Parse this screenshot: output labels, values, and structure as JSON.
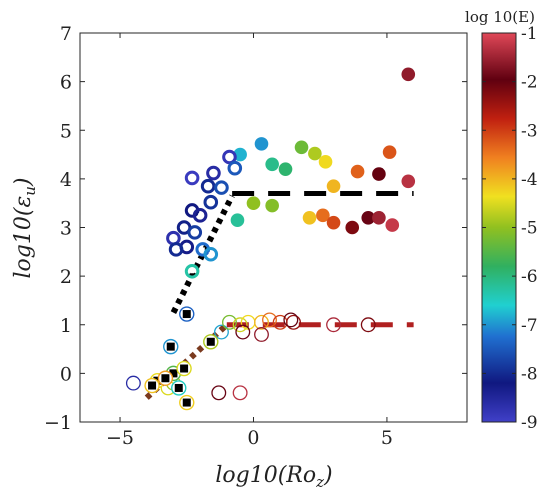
{
  "chart_data": {
    "type": "scatter",
    "title": "",
    "xlabel": "log10(Ro_z)",
    "ylabel": "log10(ε_u)",
    "xlim": [
      -6.5,
      8
    ],
    "ylim": [
      -1,
      7
    ],
    "xticks": [
      -5,
      0,
      5
    ],
    "yticks": [
      -1,
      0,
      1,
      2,
      3,
      4,
      5,
      6,
      7
    ],
    "xtick_labels": [
      "−5",
      "0",
      "5"
    ],
    "ytick_labels": [
      "−1",
      "0",
      "1",
      "2",
      "3",
      "4",
      "5",
      "6",
      "7"
    ],
    "grid": false,
    "colorbar": {
      "title": "log 10(E)",
      "range": [
        -9,
        -1
      ],
      "ticks": [
        -1,
        -2,
        -3,
        -4,
        -5,
        -6,
        -7,
        -8,
        -9
      ],
      "tick_labels": [
        "-1",
        "-2",
        "-3",
        "-4",
        "-5",
        "-6",
        "-7",
        "-8",
        "-9"
      ],
      "colors": [
        "#4040c8",
        "#101880",
        "#2070d0",
        "#20d0d0",
        "#30b060",
        "#90c020",
        "#f0e020",
        "#f08020",
        "#c02010",
        "#600010",
        "#e04858"
      ]
    },
    "series": [
      {
        "style": "filled",
        "points": [
          {
            "x": 5.8,
            "y": 6.15,
            "c": -1.6
          },
          {
            "x": -0.5,
            "y": 4.5,
            "c": -6.8
          },
          {
            "x": 0.3,
            "y": 4.72,
            "c": -7.0
          },
          {
            "x": 0.7,
            "y": 4.3,
            "c": -6.1
          },
          {
            "x": 1.2,
            "y": 4.2,
            "c": -5.9
          },
          {
            "x": -0.6,
            "y": 3.15,
            "c": -6.2
          },
          {
            "x": 0.0,
            "y": 3.5,
            "c": -5.0
          },
          {
            "x": 0.7,
            "y": 3.45,
            "c": -5.1
          },
          {
            "x": 1.8,
            "y": 4.65,
            "c": -5.3
          },
          {
            "x": 2.3,
            "y": 4.52,
            "c": -4.8
          },
          {
            "x": 2.7,
            "y": 4.35,
            "c": -4.3
          },
          {
            "x": 3.0,
            "y": 3.85,
            "c": -4.0
          },
          {
            "x": 2.1,
            "y": 3.2,
            "c": -4.1
          },
          {
            "x": 2.6,
            "y": 3.25,
            "c": -3.4
          },
          {
            "x": 3.0,
            "y": 3.1,
            "c": -3.1
          },
          {
            "x": 3.7,
            "y": 3.0,
            "c": -2.2
          },
          {
            "x": 4.3,
            "y": 3.2,
            "c": -1.9
          },
          {
            "x": 4.7,
            "y": 3.2,
            "c": -1.5
          },
          {
            "x": 5.2,
            "y": 3.05,
            "c": -1.2
          },
          {
            "x": 3.9,
            "y": 4.15,
            "c": -3.3
          },
          {
            "x": 4.7,
            "y": 4.1,
            "c": -2.0
          },
          {
            "x": 5.1,
            "y": 4.55,
            "c": -3.2
          },
          {
            "x": 5.8,
            "y": 3.95,
            "c": -1.3
          }
        ]
      },
      {
        "style": "open-square-dot",
        "points": [
          {
            "x": -2.3,
            "y": 4.02,
            "c": -8.9
          },
          {
            "x": -1.5,
            "y": 4.12,
            "c": -8.6
          },
          {
            "x": -0.9,
            "y": 4.45,
            "c": -8.8
          },
          {
            "x": -0.7,
            "y": 4.22,
            "c": -7.5
          },
          {
            "x": -1.7,
            "y": 3.85,
            "c": -8.0
          },
          {
            "x": -1.2,
            "y": 3.82,
            "c": -7.6
          },
          {
            "x": -1.6,
            "y": 3.52,
            "c": -7.9
          },
          {
            "x": -2.3,
            "y": 3.35,
            "c": -8.2
          },
          {
            "x": -2.0,
            "y": 3.25,
            "c": -8.4
          },
          {
            "x": -2.6,
            "y": 3.0,
            "c": -8.1
          },
          {
            "x": -2.2,
            "y": 2.9,
            "c": -7.8
          },
          {
            "x": -3.0,
            "y": 2.78,
            "c": -8.7
          },
          {
            "x": -2.5,
            "y": 2.6,
            "c": -8.3
          },
          {
            "x": -2.9,
            "y": 2.55,
            "c": -8.0
          },
          {
            "x": -1.9,
            "y": 2.55,
            "c": -7.3
          },
          {
            "x": -1.6,
            "y": 2.45,
            "c": -7.0
          },
          {
            "x": -2.3,
            "y": 2.1,
            "c": -6.3
          }
        ]
      },
      {
        "style": "open-circle",
        "points": [
          {
            "x": -1.2,
            "y": 0.85,
            "c": -6.9
          },
          {
            "x": -0.9,
            "y": 1.05,
            "c": -5.2
          },
          {
            "x": -0.5,
            "y": 1.0,
            "c": -4.6
          },
          {
            "x": -0.2,
            "y": 1.05,
            "c": -4.3
          },
          {
            "x": 0.3,
            "y": 1.05,
            "c": -4.0
          },
          {
            "x": 0.6,
            "y": 1.1,
            "c": -3.4
          },
          {
            "x": 1.0,
            "y": 1.05,
            "c": -3.0
          },
          {
            "x": 1.5,
            "y": 1.05,
            "c": -2.4
          },
          {
            "x": -0.4,
            "y": 0.85,
            "c": -1.9
          },
          {
            "x": 0.3,
            "y": 0.8,
            "c": -1.6
          },
          {
            "x": 1.4,
            "y": 1.1,
            "c": -2.0
          },
          {
            "x": 3.0,
            "y": 1.0,
            "c": -1.4
          },
          {
            "x": 4.3,
            "y": 1.0,
            "c": -2.2
          },
          {
            "x": -4.5,
            "y": -0.2,
            "c": -8.6
          },
          {
            "x": -3.0,
            "y": -0.2,
            "c": -4.9
          },
          {
            "x": -3.2,
            "y": -0.3,
            "c": -4.5
          },
          {
            "x": -1.3,
            "y": -0.4,
            "c": -1.9
          },
          {
            "x": -0.5,
            "y": -0.4,
            "c": -1.3
          }
        ]
      },
      {
        "style": "filled-black-square",
        "points": [
          {
            "x": -2.5,
            "y": 1.22,
            "c": -7.4
          },
          {
            "x": -3.1,
            "y": 0.55,
            "c": -7.0
          },
          {
            "x": -1.6,
            "y": 0.65,
            "c": -4.8
          },
          {
            "x": -3.0,
            "y": 0.0,
            "c": -5.5
          },
          {
            "x": -2.6,
            "y": 0.1,
            "c": -4.5
          },
          {
            "x": -3.6,
            "y": -0.15,
            "c": -4.4
          },
          {
            "x": -3.3,
            "y": -0.1,
            "c": -3.8
          },
          {
            "x": -3.8,
            "y": -0.25,
            "c": -4.1
          },
          {
            "x": -2.5,
            "y": -0.6,
            "c": -4.2
          },
          {
            "x": -2.8,
            "y": -0.3,
            "c": -6.5
          }
        ]
      }
    ],
    "reference_lines": [
      {
        "style": "dotted",
        "color": "#000000",
        "x": [
          -3.0,
          -0.8
        ],
        "y": [
          1.25,
          3.65
        ]
      },
      {
        "style": "dashed",
        "color": "#000000",
        "x": [
          -0.8,
          6.0
        ],
        "y": [
          3.7,
          3.7
        ]
      },
      {
        "style": "dotted",
        "color": "#7a3a1e",
        "x": [
          -4.0,
          -1.0
        ],
        "y": [
          -0.5,
          1.0
        ]
      },
      {
        "style": "dashed",
        "color": "#b02020",
        "x": [
          -1.0,
          6.0
        ],
        "y": [
          1.0,
          1.0
        ]
      }
    ]
  }
}
